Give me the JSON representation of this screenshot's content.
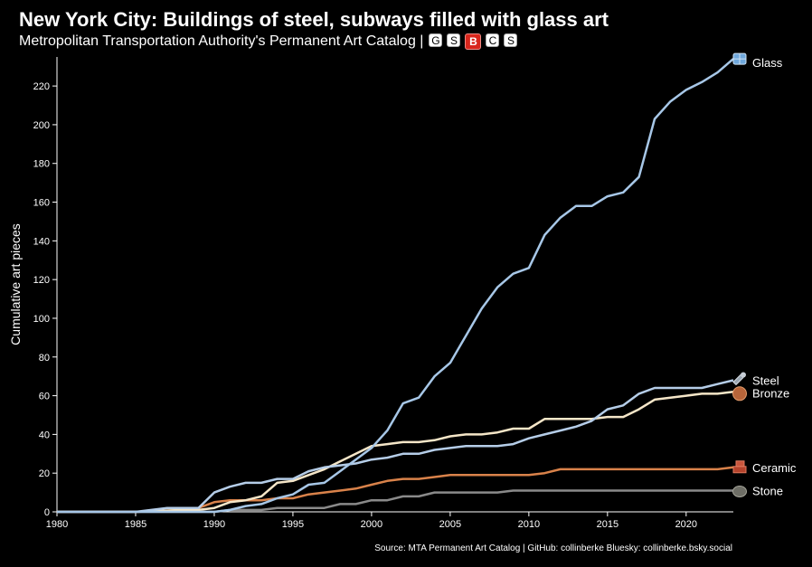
{
  "chart_data": {
    "type": "line",
    "title": "New York City: Buildings of steel, subways filled with glass art",
    "subtitle": "Metropolitan Transportation Authority's Permanent Art Catalog |",
    "subway_badges": [
      "G",
      "S",
      "B",
      "C",
      "S"
    ],
    "source": "Source: MTA Permanent Art Catalog | GitHub: collinberke Bluesky: collinberke.bsky.social",
    "xlabel": "",
    "ylabel": "Cumulative art pieces",
    "xlim": [
      1980,
      2023
    ],
    "ylim": [
      0,
      235
    ],
    "x_ticks": [
      "1980",
      "1985",
      "1990",
      "1995",
      "2000",
      "2005",
      "2010",
      "2015",
      "2020"
    ],
    "y_ticks": [
      "0",
      "20",
      "40",
      "60",
      "80",
      "100",
      "120",
      "140",
      "160",
      "180",
      "200",
      "220"
    ],
    "series": [
      {
        "name": "Glass",
        "color": "#a7c7e7",
        "icon": "glass-icon",
        "x": [
          1980,
          1985,
          1989,
          1990,
          1991,
          1992,
          1993,
          1994,
          1995,
          1996,
          1997,
          1998,
          1999,
          2000,
          2001,
          2002,
          2003,
          2004,
          2005,
          2006,
          2007,
          2008,
          2009,
          2010,
          2011,
          2012,
          2013,
          2014,
          2015,
          2016,
          2017,
          2018,
          2019,
          2020,
          2021,
          2022,
          2023
        ],
        "values": [
          0,
          0,
          0,
          0,
          1,
          3,
          4,
          7,
          9,
          14,
          15,
          21,
          27,
          33,
          42,
          56,
          59,
          70,
          77,
          91,
          105,
          116,
          123,
          126,
          143,
          152,
          158,
          158,
          163,
          165,
          173,
          203,
          212,
          218,
          222,
          227,
          234
        ]
      },
      {
        "name": "Steel",
        "color": "#b5cde8",
        "icon": "steel-icon",
        "x": [
          1980,
          1985,
          1987,
          1989,
          1990,
          1991,
          1992,
          1993,
          1994,
          1995,
          1996,
          1997,
          1998,
          1999,
          2000,
          2001,
          2002,
          2003,
          2004,
          2005,
          2006,
          2007,
          2008,
          2009,
          2010,
          2011,
          2012,
          2013,
          2014,
          2015,
          2016,
          2017,
          2018,
          2019,
          2020,
          2021,
          2022,
          2023
        ],
        "values": [
          0,
          0,
          2,
          2,
          10,
          13,
          15,
          15,
          17,
          17,
          21,
          23,
          24,
          25,
          27,
          28,
          30,
          30,
          32,
          33,
          34,
          34,
          34,
          35,
          38,
          40,
          42,
          44,
          47,
          53,
          55,
          61,
          64,
          64,
          64,
          64,
          66,
          68
        ]
      },
      {
        "name": "Bronze",
        "color": "#f5e6c8",
        "icon": "bronze-icon",
        "x": [
          1980,
          1985,
          1988,
          1989,
          1990,
          1991,
          1992,
          1993,
          1994,
          1995,
          1996,
          1997,
          1998,
          1999,
          2000,
          2001,
          2002,
          2003,
          2004,
          2005,
          2006,
          2007,
          2008,
          2009,
          2010,
          2011,
          2012,
          2013,
          2014,
          2015,
          2016,
          2017,
          2018,
          2019,
          2020,
          2021,
          2022,
          2023
        ],
        "values": [
          0,
          0,
          1,
          1,
          2,
          5,
          6,
          8,
          15,
          16,
          19,
          22,
          26,
          30,
          34,
          35,
          36,
          36,
          37,
          39,
          40,
          40,
          41,
          43,
          43,
          48,
          48,
          48,
          48,
          49,
          49,
          53,
          58,
          59,
          60,
          61,
          61,
          62
        ]
      },
      {
        "name": "Ceramic",
        "color": "#d9824a",
        "icon": "ceramic-icon",
        "x": [
          1980,
          1985,
          1988,
          1989,
          1990,
          1991,
          1992,
          1993,
          1994,
          1995,
          1996,
          1997,
          1998,
          1999,
          2000,
          2001,
          2002,
          2003,
          2004,
          2005,
          2006,
          2007,
          2008,
          2009,
          2010,
          2011,
          2012,
          2013,
          2014,
          2015,
          2016,
          2017,
          2018,
          2019,
          2020,
          2021,
          2022,
          2023
        ],
        "values": [
          0,
          0,
          1,
          2,
          5,
          6,
          6,
          6,
          7,
          7,
          9,
          10,
          11,
          12,
          14,
          16,
          17,
          17,
          18,
          19,
          19,
          19,
          19,
          19,
          19,
          20,
          22,
          22,
          22,
          22,
          22,
          22,
          22,
          22,
          22,
          22,
          22,
          23
        ]
      },
      {
        "name": "Stone",
        "color": "#8a8a8a",
        "icon": "stone-icon",
        "x": [
          1980,
          1985,
          1989,
          1990,
          1991,
          1992,
          1993,
          1994,
          1995,
          1996,
          1997,
          1998,
          1999,
          2000,
          2001,
          2002,
          2003,
          2004,
          2005,
          2006,
          2007,
          2008,
          2009,
          2010,
          2011,
          2012,
          2013,
          2014,
          2015,
          2016,
          2017,
          2018,
          2019,
          2020,
          2021,
          2022,
          2023
        ],
        "values": [
          0,
          0,
          0,
          0,
          1,
          1,
          1,
          2,
          2,
          2,
          2,
          4,
          4,
          6,
          6,
          8,
          8,
          10,
          10,
          10,
          10,
          10,
          11,
          11,
          11,
          11,
          11,
          11,
          11,
          11,
          11,
          11,
          11,
          11,
          11,
          11,
          11
        ]
      }
    ]
  }
}
